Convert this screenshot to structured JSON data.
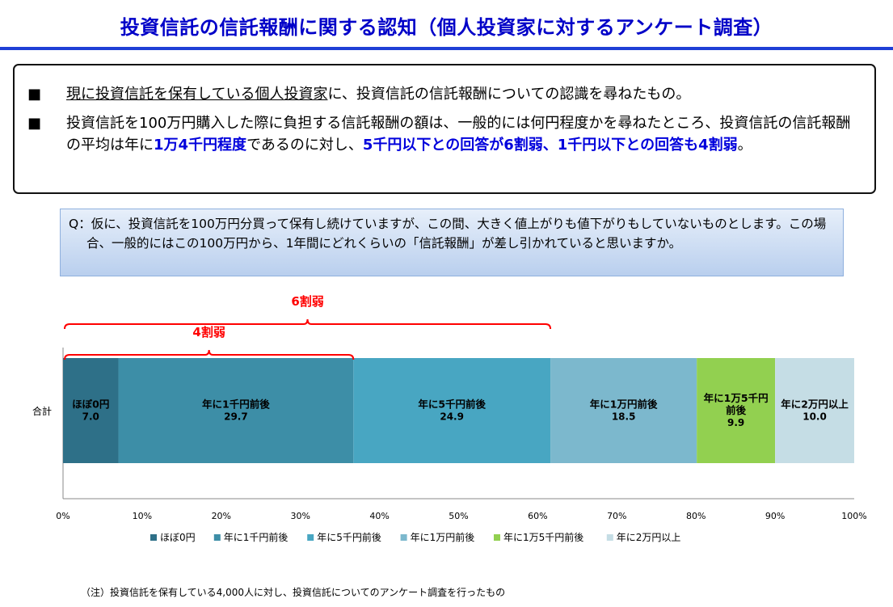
{
  "title": "投資信託の信託報酬に関する認知（個人投資家に対するアンケート調査）",
  "summary": {
    "bullet_mark": "■",
    "bullet1_underlined": "現に投資信託を保有している個人投資家",
    "bullet1_rest": "に、投資信託の信託報酬についての認識を尋ねたもの。",
    "bullet2_part1": "投資信託を100万円購入した際に負担する信託報酬の額は、一般的には何円程度かを尋ねたところ、投資信託の信託報酬の平均は年に",
    "bullet2_hl1": "1万4千円程度",
    "bullet2_part2": "であるのに対し、",
    "bullet2_hl2": "5千円以下との回答が6割弱、1千円以下との回答も4割弱",
    "bullet2_part3": "。"
  },
  "question": "Q：仮に、投資信託を100万円分買って保有し続けていますが、この間、大きく値上がりも値下がりもしていないものとします。この場合、一般的にはこの100万円から、1年間にどれくらいの「信託報酬」が差し引かれていると思いますか。",
  "chart_data": {
    "type": "bar",
    "orientation": "horizontal-stacked-100",
    "categories": [
      "合計"
    ],
    "series": [
      {
        "name": "ほぼ0円",
        "values": [
          7.0
        ],
        "label_lines": [
          "ほぼ0円"
        ],
        "color": "#2e7088"
      },
      {
        "name": "年に1千円前後",
        "values": [
          29.7
        ],
        "label_lines": [
          "年に1千円前後"
        ],
        "color": "#3d8ea7"
      },
      {
        "name": "年に5千円前後",
        "values": [
          24.9
        ],
        "label_lines": [
          "年に5千円前後"
        ],
        "color": "#48a6c2"
      },
      {
        "name": "年に1万円前後",
        "values": [
          18.5
        ],
        "label_lines": [
          "年に1万円前後"
        ],
        "color": "#7cb8cd"
      },
      {
        "name": "年に1万5千円前後",
        "values": [
          9.9
        ],
        "label_lines": [
          "年に1万5千円",
          "前後"
        ],
        "color": "#92d050"
      },
      {
        "name": "年に2万円以上",
        "values": [
          10.0
        ],
        "label_lines": [
          "年に2万円以上"
        ],
        "color": "#c5dde5"
      }
    ],
    "xlim": [
      0,
      100
    ],
    "x_ticks": [
      "0%",
      "10%",
      "20%",
      "30%",
      "40%",
      "50%",
      "60%",
      "70%",
      "80%",
      "90%",
      "100%"
    ],
    "legend_position": "bottom",
    "annotations": [
      {
        "label": "6割弱",
        "from": 0,
        "to": 61.6,
        "color": "#ff0000"
      },
      {
        "label": "4割弱",
        "from": 0,
        "to": 36.7,
        "color": "#ff0000"
      }
    ]
  },
  "footnote": "（注）投資信託を保有している4,000人に対し、投資信託についてのアンケート調査を行ったもの"
}
